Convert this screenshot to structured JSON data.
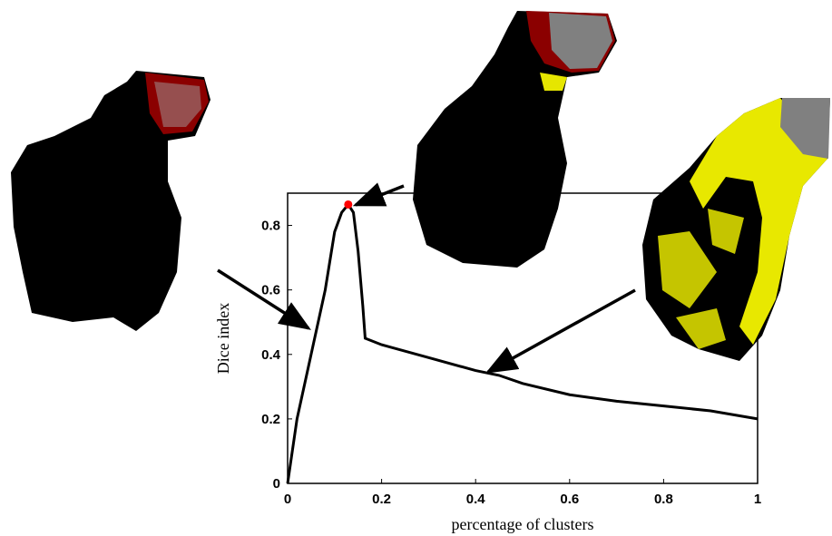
{
  "chart_data": {
    "type": "line",
    "x_label": "percentage of clusters",
    "y_label": "Dice index",
    "xlim": [
      0,
      1
    ],
    "ylim": [
      0,
      0.9
    ],
    "xticks": [
      0,
      0.2,
      0.4,
      0.6,
      0.8,
      1
    ],
    "yticks": [
      0,
      0.2,
      0.4,
      0.6,
      0.8
    ],
    "series": [
      {
        "color": "#000000",
        "x": [
          0,
          0.02,
          0.05,
          0.08,
          0.1,
          0.115,
          0.129,
          0.14,
          0.15,
          0.16,
          0.165,
          0.2,
          0.3,
          0.4,
          0.45,
          0.5,
          0.6,
          0.7,
          0.8,
          0.9,
          1
        ],
        "values": [
          0,
          0.2,
          0.4,
          0.6,
          0.78,
          0.84,
          0.865,
          0.84,
          0.72,
          0.55,
          0.45,
          0.43,
          0.39,
          0.35,
          0.335,
          0.31,
          0.275,
          0.255,
          0.24,
          0.225,
          0.2
        ]
      }
    ],
    "highlight": {
      "x": 0.129,
      "y": 0.865,
      "color": "#ff0000"
    }
  }
}
